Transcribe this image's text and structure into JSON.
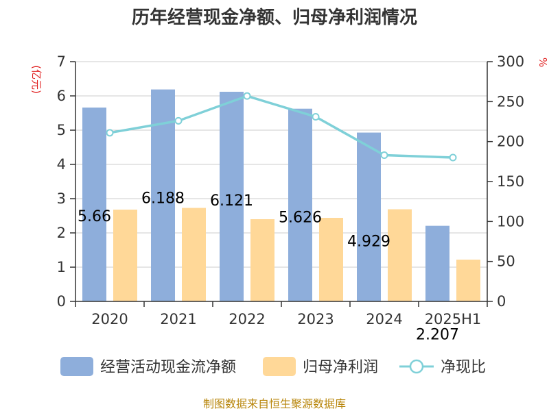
{
  "chart_data": {
    "type": "bar",
    "title": "历年经营现金净额、归母净利润情况",
    "categories": [
      "2020",
      "2021",
      "2022",
      "2023",
      "2024",
      "2025H1"
    ],
    "left_axis": {
      "unit": "(亿元)",
      "ylim": [
        0,
        7
      ],
      "ticks": [
        "0",
        "1",
        "2",
        "3",
        "4",
        "5",
        "6",
        "7"
      ]
    },
    "right_axis": {
      "unit": "%",
      "ylim": [
        0,
        300
      ],
      "ticks": [
        "0",
        "50",
        "100",
        "150",
        "200",
        "250",
        "300"
      ]
    },
    "series": [
      {
        "name": "经营活动现金流净额",
        "type": "bar",
        "axis": "left",
        "color": "#8eaedb",
        "values": [
          5.66,
          6.188,
          6.121,
          5.626,
          4.929,
          2.207
        ],
        "labels": [
          "5.66",
          "6.188",
          "6.121",
          "5.626",
          "4.929",
          "2.207"
        ]
      },
      {
        "name": "归母净利润",
        "type": "bar",
        "axis": "left",
        "color": "#ffd898",
        "values": [
          2.68,
          2.73,
          2.4,
          2.44,
          2.69,
          1.22
        ]
      },
      {
        "name": "净现比",
        "type": "line",
        "axis": "right",
        "color": "#7fd0d8",
        "values": [
          211,
          226,
          257,
          231,
          183,
          180
        ]
      }
    ],
    "grid": true,
    "legend": "bottom"
  },
  "source": "制图数据来自恒生聚源数据库"
}
